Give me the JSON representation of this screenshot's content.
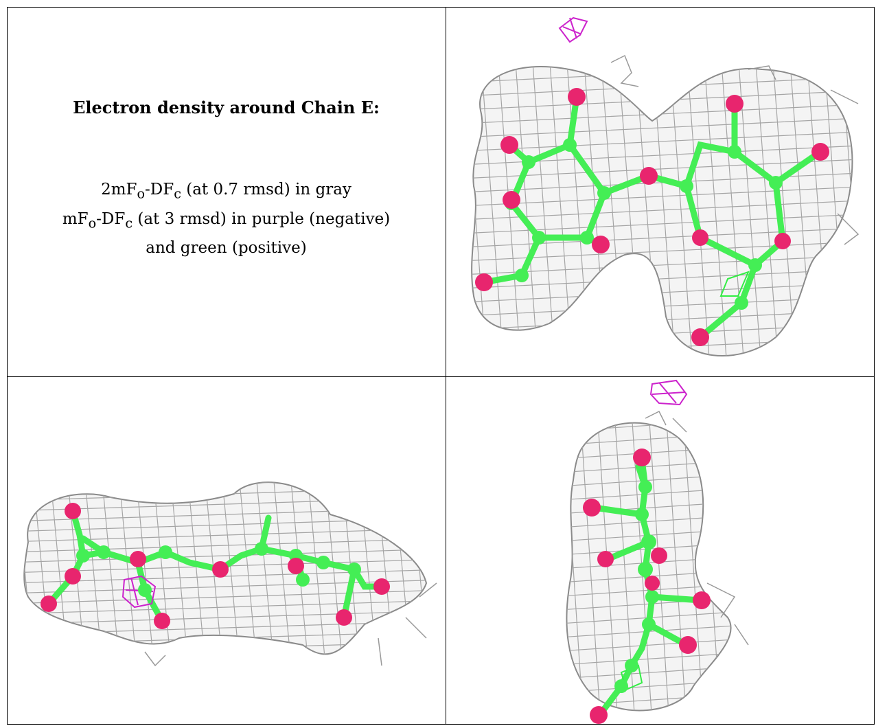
{
  "caption": {
    "title": "Electron density around Chain E:",
    "line1_a": "2mF",
    "line1_sub1": "o",
    "line1_b": "-DF",
    "line1_sub2": "c",
    "line1_c": " (at 0.7 rmsd) in gray",
    "line2_a": "mF",
    "line2_sub1": "o",
    "line2_b": "-DF",
    "line2_sub2": "c",
    "line2_c": " (at 3 rmsd) in purple (negative)",
    "line3": "and green (positive)"
  },
  "colors": {
    "mesh_gray": "#9a9a9a",
    "carbon_green": "#44ee55",
    "oxygen_pink": "#e8256e",
    "negative_purple": "#cc22cc",
    "positive_green": "#33ee44"
  },
  "panels": [
    {
      "id": "top-right",
      "view": "face-on"
    },
    {
      "id": "bottom-left",
      "view": "side"
    },
    {
      "id": "bottom-right",
      "view": "edge-on"
    }
  ]
}
